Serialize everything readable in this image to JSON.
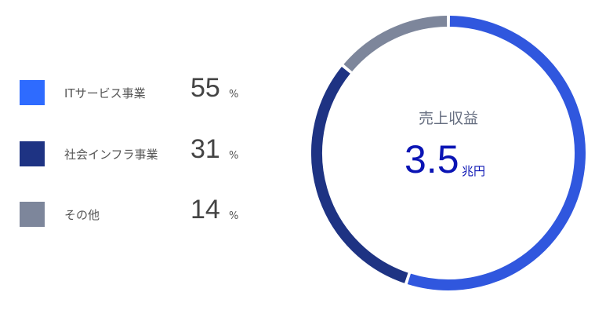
{
  "chart_data": {
    "type": "pie",
    "style": "donut",
    "start": "top, clockwise",
    "categories": [
      "ITサービス事業",
      "社会インフラ事業",
      "その他"
    ],
    "values": [
      55,
      31,
      14
    ],
    "unit": "%",
    "colors": [
      "#3057de",
      "#1e3383",
      "#7d869b"
    ],
    "legend_colors": [
      "#2e6bff",
      "#1e3383",
      "#7d869b"
    ],
    "legend_placement": "left",
    "center_title": "売上収益",
    "center_value": "3.5",
    "center_unit": "兆円"
  }
}
